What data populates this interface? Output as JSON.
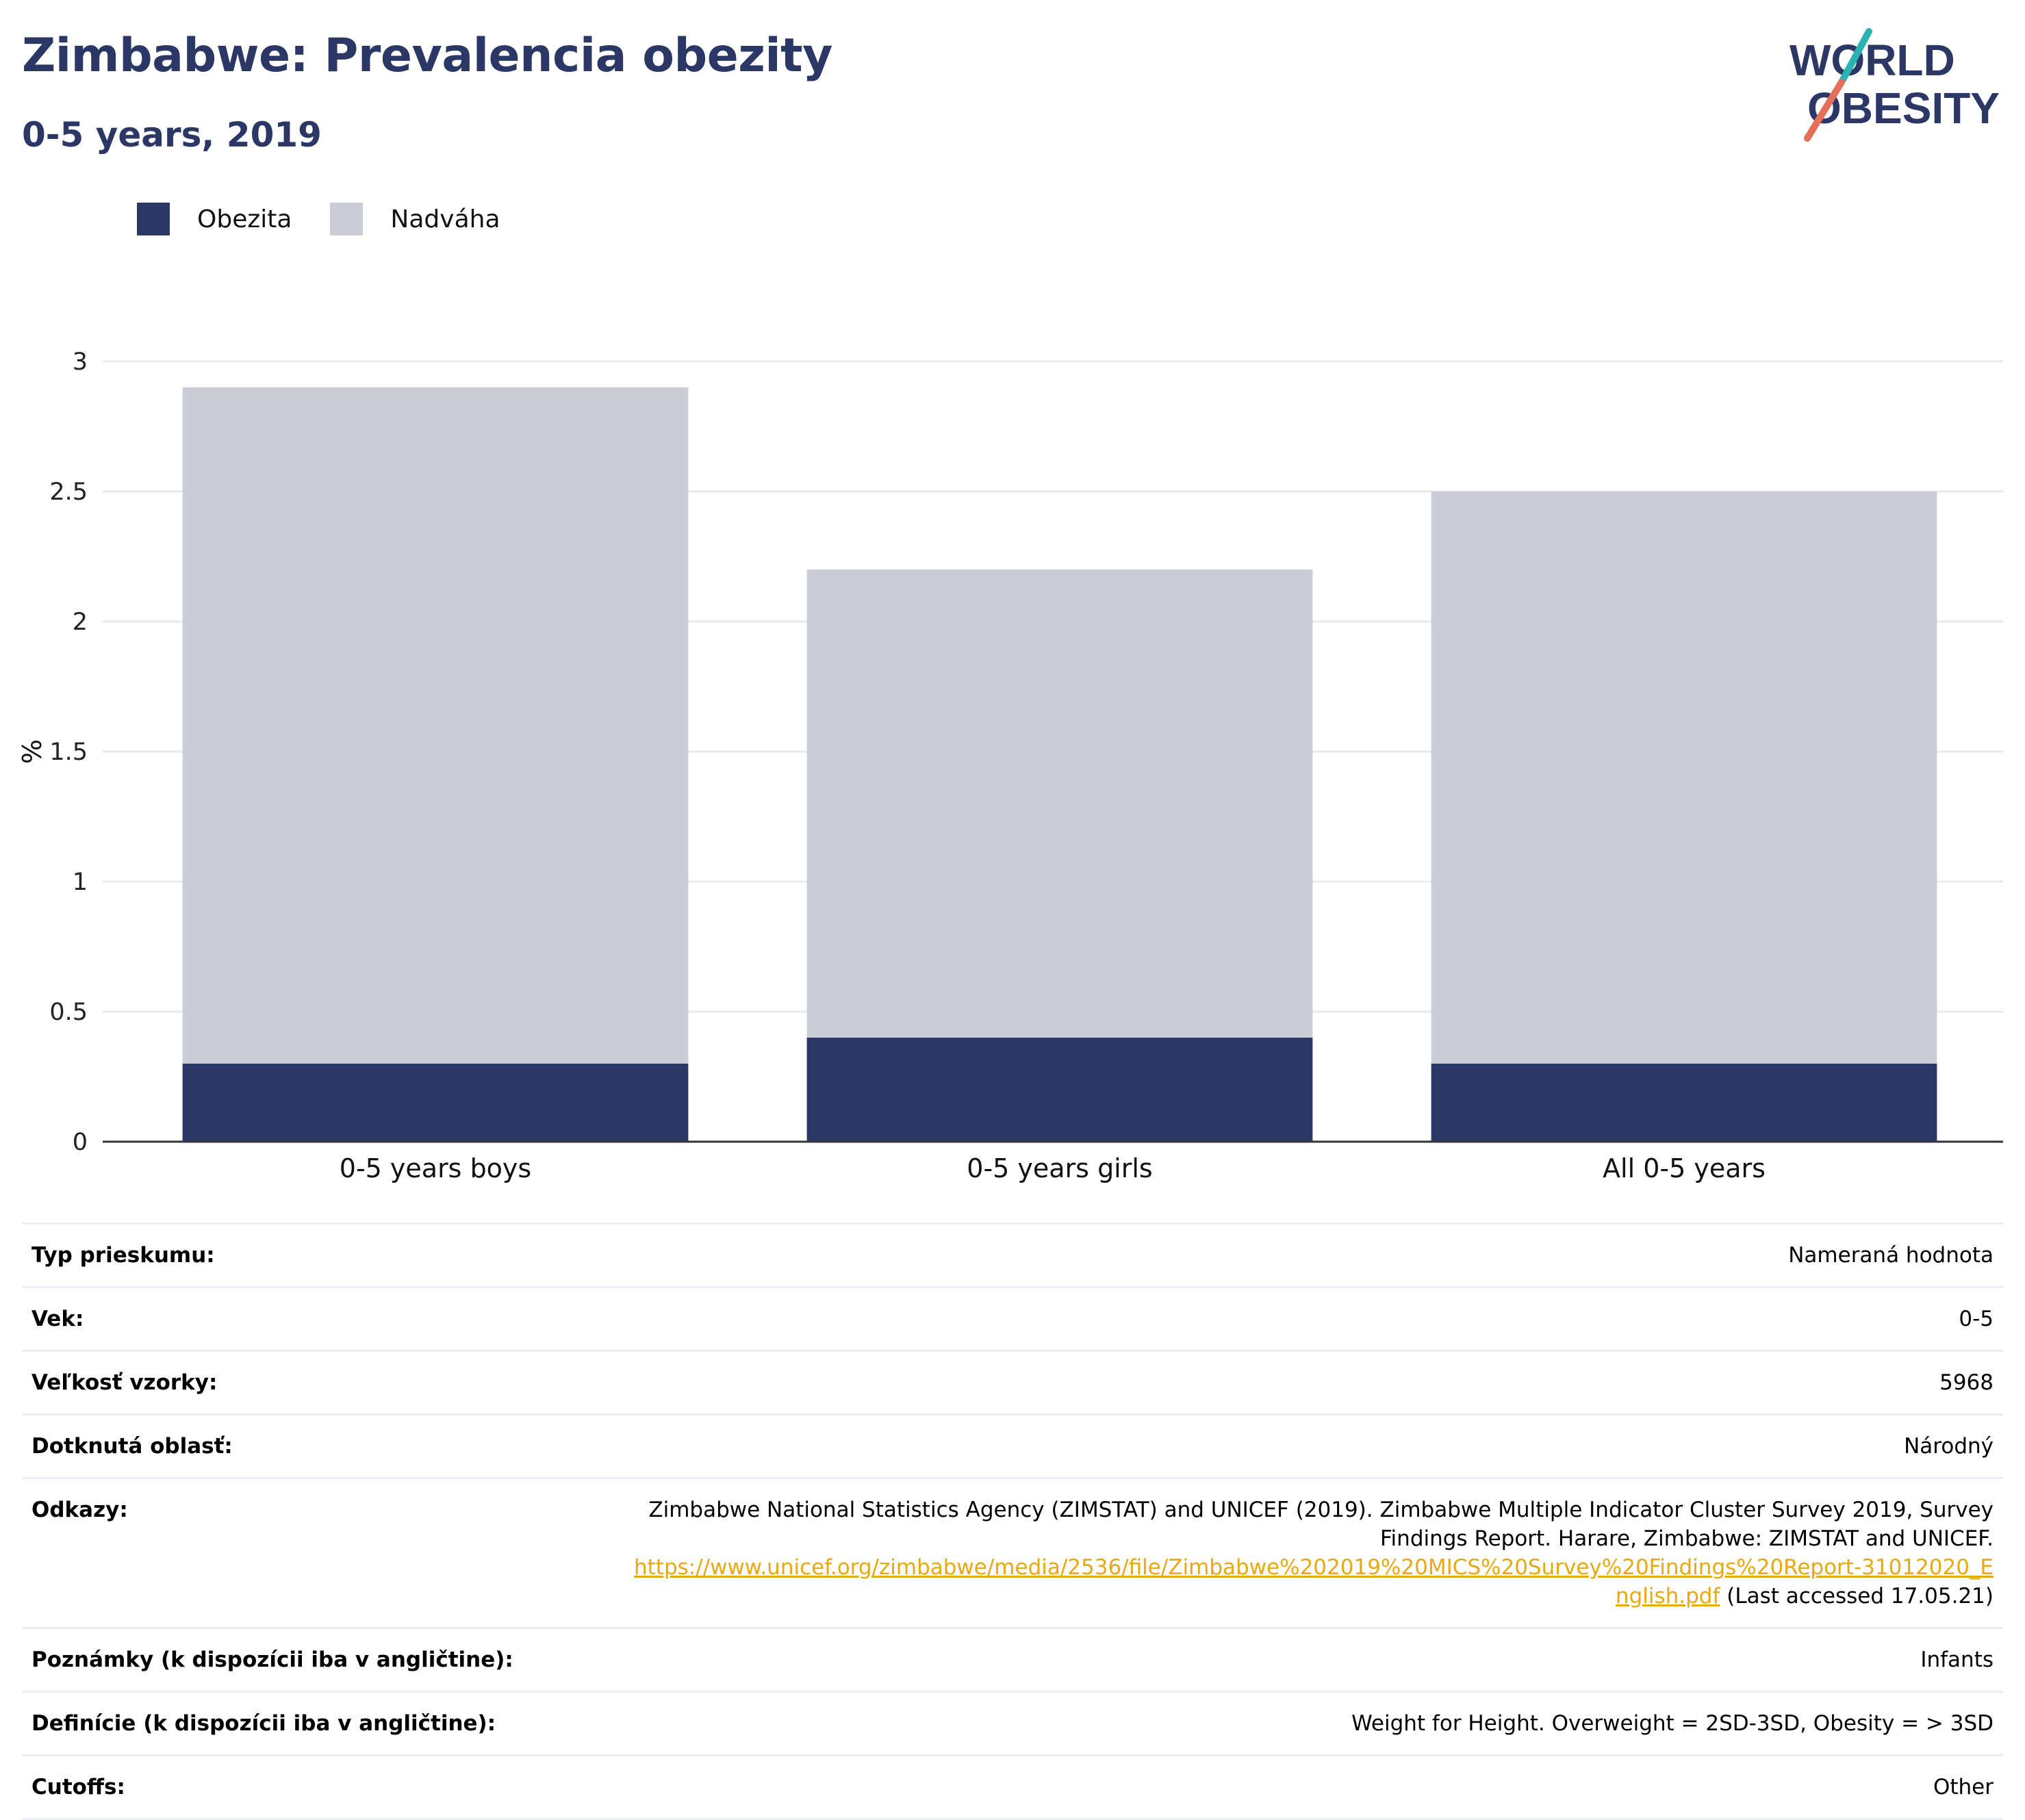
{
  "header": {
    "title": "Zimbabwe: Prevalencia obezity",
    "subtitle": "0-5 years, 2019",
    "logo_line1": "WORLD",
    "logo_line2": "OBESITY"
  },
  "legend": {
    "items": [
      {
        "label": "Obezita",
        "color": "#2b3764"
      },
      {
        "label": "Nadváha",
        "color": "#cacdd8"
      }
    ]
  },
  "chart_data": {
    "type": "bar",
    "stacked": true,
    "categories": [
      "0-5 years boys",
      "0-5 years girls",
      "All 0-5 years"
    ],
    "series": [
      {
        "name": "Obezita",
        "values": [
          0.3,
          0.4,
          0.3
        ],
        "color": "#2b3764"
      },
      {
        "name": "Nadváha",
        "values": [
          2.6,
          1.8,
          2.2
        ],
        "color": "#cacdd8"
      }
    ],
    "ylabel": "%",
    "ylim": [
      0,
      3
    ],
    "yticks": [
      0,
      0.5,
      1,
      1.5,
      2,
      2.5,
      3
    ],
    "ytick_labels": [
      "0",
      "0.5",
      "1",
      "1.5",
      "2",
      "2.5",
      "3"
    ],
    "grid": true,
    "legend_position": "top-left"
  },
  "details": {
    "rows": [
      {
        "key": "Typ prieskumu:",
        "value": "Nameraná hodnota"
      },
      {
        "key": "Vek:",
        "value": "0-5"
      },
      {
        "key": "Veľkosť vzorky:",
        "value": "5968"
      },
      {
        "key": "Dotknutá oblasť:",
        "value": "Národný"
      }
    ],
    "references": {
      "key": "Odkazy:",
      "text": "Zimbabwe National Statistics Agency (ZIMSTAT) and UNICEF (2019). Zimbabwe Multiple Indicator Cluster Survey 2019, Survey Findings Report. Harare, Zimbabwe: ZIMSTAT and UNICEF.",
      "link": "https://www.unicef.org/zimbabwe/media/2536/file/Zimbabwe%202019%20MICS%20Survey%20Findings%20Report-31012020_English.pdf",
      "suffix": "(Last accessed 17.05.21)"
    },
    "rows_after": [
      {
        "key": "Poznámky (k dispozícii iba v angličtine):",
        "value": "Infants"
      },
      {
        "key": "Definície (k dispozícii iba v angličtine):",
        "value": "Weight for Height. Overweight = 2SD-3SD, Obesity = > 3SD"
      },
      {
        "key": "Cutoffs:",
        "value": "Other"
      }
    ]
  }
}
